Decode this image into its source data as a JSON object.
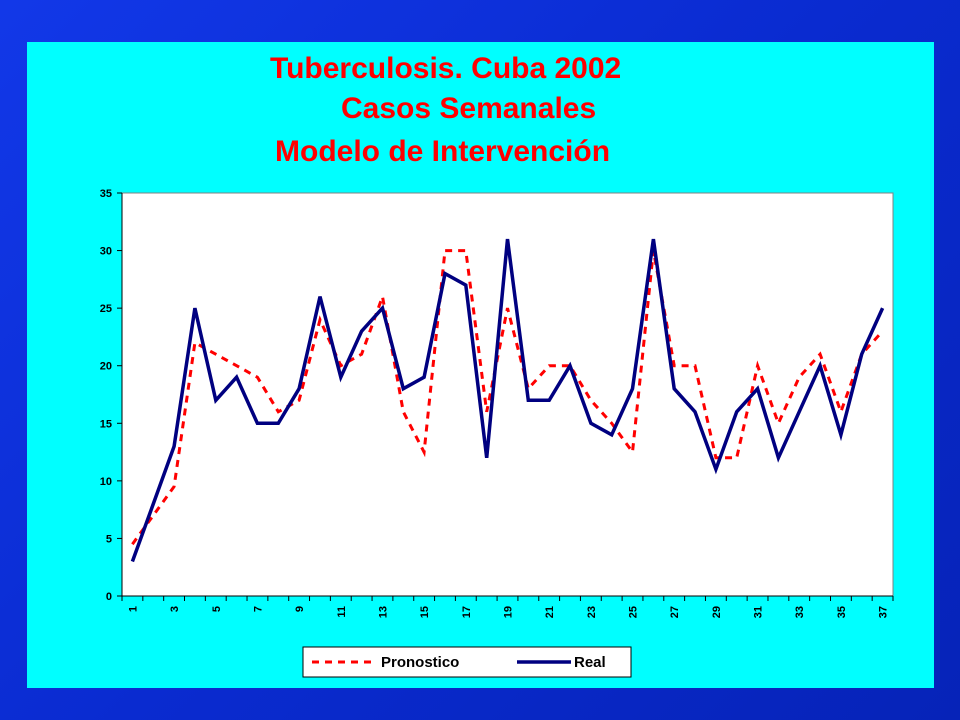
{
  "chart_data": {
    "type": "line",
    "title": [
      "Tuberculosis. Cuba 2002",
      "Casos Semanales",
      "Modelo de Intervención"
    ],
    "x": [
      1,
      2,
      3,
      4,
      5,
      6,
      7,
      8,
      9,
      10,
      11,
      12,
      13,
      14,
      15,
      16,
      17,
      18,
      19,
      20,
      21,
      22,
      23,
      24,
      25,
      26,
      27,
      28,
      29,
      30,
      31,
      32,
      33,
      34,
      35,
      36,
      37
    ],
    "x_tick_labels": [
      "1",
      "3",
      "5",
      "7",
      "9",
      "11",
      "13",
      "15",
      "17",
      "19",
      "21",
      "23",
      "25",
      "27",
      "29",
      "31",
      "33",
      "35",
      "37"
    ],
    "ylim": [
      0,
      35
    ],
    "y_ticks": [
      0,
      5,
      10,
      15,
      20,
      25,
      30,
      35
    ],
    "grid": false,
    "legend_position": "bottom",
    "series": [
      {
        "name": "Pronostico",
        "color": "#ff0000",
        "style": "dashed",
        "values": [
          4.5,
          7,
          9.5,
          22,
          21,
          20,
          19,
          16,
          17,
          24,
          20,
          21,
          26,
          16,
          12.5,
          30,
          30,
          16,
          25,
          18,
          20,
          20,
          17,
          15,
          12.5,
          30,
          20,
          20,
          12,
          12,
          20,
          15,
          19,
          21,
          16,
          21,
          23
        ]
      },
      {
        "name": "Real",
        "color": "#000080",
        "style": "solid",
        "values": [
          3,
          8,
          13,
          25,
          17,
          19,
          15,
          15,
          18,
          26,
          19,
          23,
          25,
          18,
          19,
          28,
          27,
          12,
          31,
          17,
          17,
          20,
          15,
          14,
          18,
          31,
          18,
          16,
          11,
          16,
          18,
          12,
          16,
          20,
          14,
          21,
          25
        ]
      }
    ]
  }
}
